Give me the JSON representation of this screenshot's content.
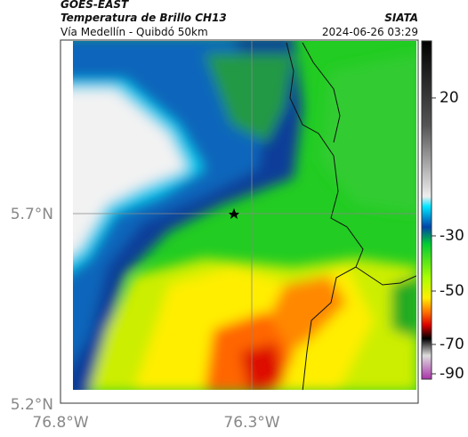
{
  "header": {
    "satellite": "GOES-EAST",
    "title": "Temperatura de Brillo CH13",
    "subtitle": "Vía Medellín - Quibdó 50km",
    "source": "SIATA",
    "timestamp": "2024-06-26 03:29"
  },
  "axes": {
    "latitude_labels": [
      "5.7°N",
      "5.2°N"
    ],
    "longitude_labels": [
      "76.8°W",
      "76.3°W"
    ]
  },
  "colorbar": {
    "ticks": [
      20,
      -30,
      -50,
      -70,
      -90
    ]
  }
}
